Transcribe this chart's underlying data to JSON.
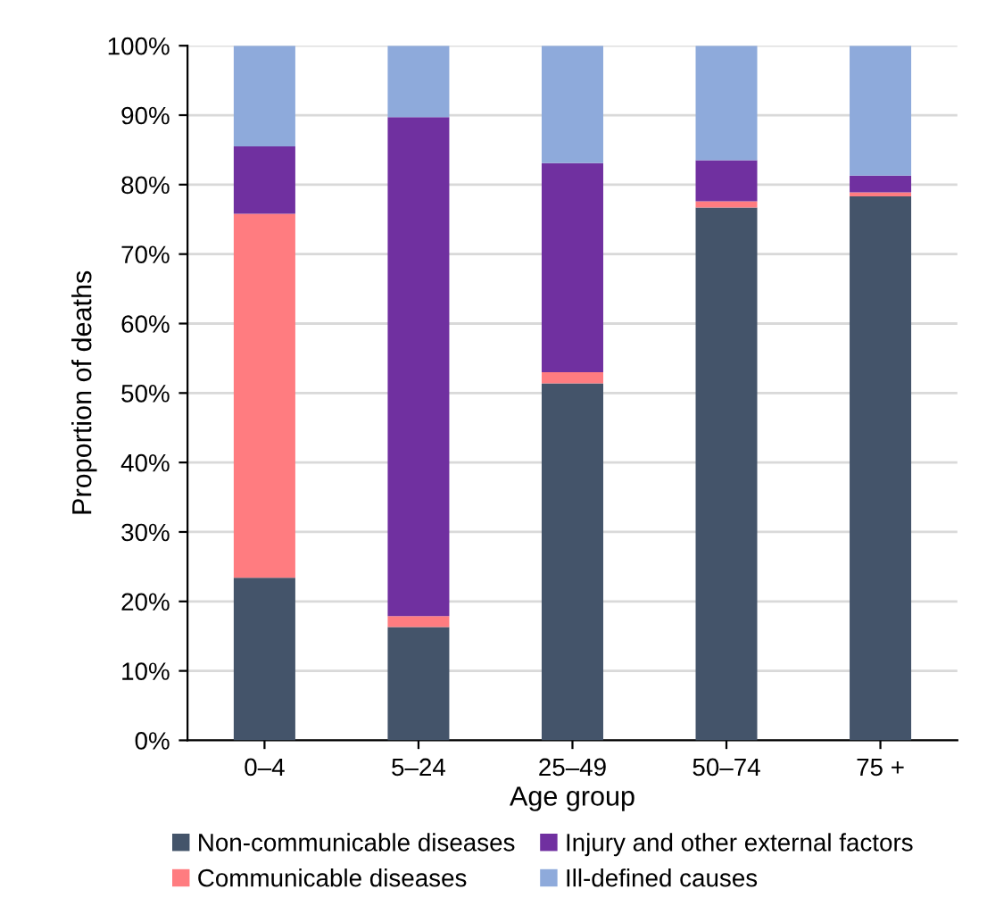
{
  "chart_data": {
    "type": "bar",
    "stacked": true,
    "xlabel": "Age group",
    "ylabel": "Proportion of deaths",
    "categories": [
      "0–4",
      "5–24",
      "25–49",
      "50–74",
      "75 +"
    ],
    "series": [
      {
        "name": "Non-communicable diseases",
        "color": "#44546a",
        "values": [
          23.4,
          16.3,
          51.4,
          76.7,
          78.3
        ]
      },
      {
        "name": "Communicable diseases",
        "color": "#ff7c80",
        "values": [
          52.4,
          1.6,
          1.6,
          0.9,
          0.6
        ]
      },
      {
        "name": "Injury and other external factors",
        "color": "#7030a0",
        "values": [
          9.7,
          71.8,
          30.1,
          5.9,
          2.4
        ]
      },
      {
        "name": "Ill-defined causes",
        "color": "#8eaadb",
        "values": [
          14.5,
          10.3,
          16.9,
          16.5,
          18.7
        ]
      }
    ],
    "ylim": [
      0,
      100
    ],
    "yticks": [
      {
        "value": 0,
        "label": "0%"
      },
      {
        "value": 10,
        "label": "10%"
      },
      {
        "value": 20,
        "label": "20%"
      },
      {
        "value": 30,
        "label": "30%"
      },
      {
        "value": 40,
        "label": "40%"
      },
      {
        "value": 50,
        "label": "50%"
      },
      {
        "value": 60,
        "label": "60%"
      },
      {
        "value": 70,
        "label": "70%"
      },
      {
        "value": 80,
        "label": "80%"
      },
      {
        "value": 90,
        "label": "90%"
      },
      {
        "value": 100,
        "label": "100%"
      }
    ],
    "grid": "y",
    "legend": "bottom"
  }
}
